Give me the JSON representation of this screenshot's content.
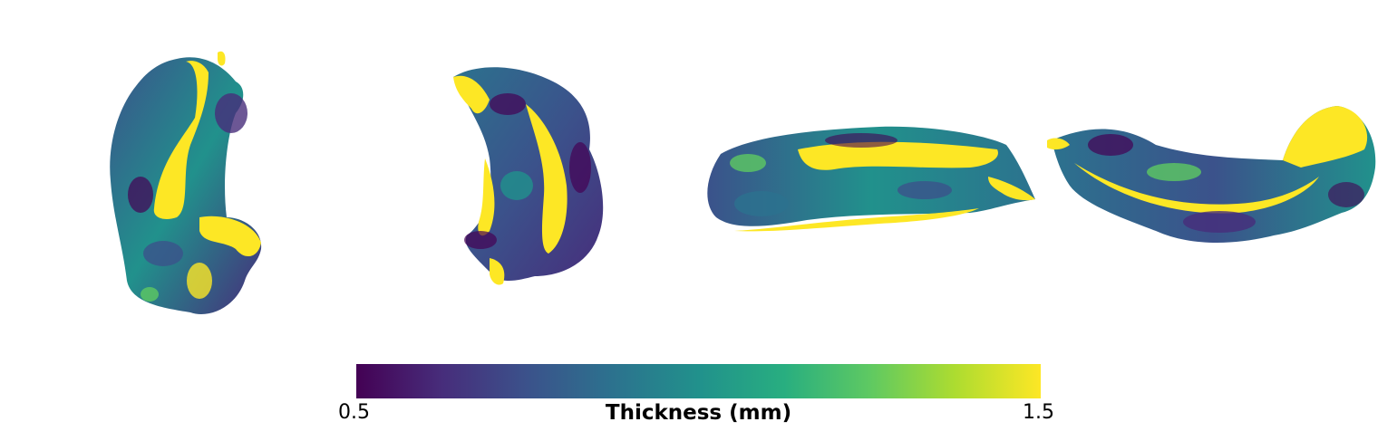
{
  "colorbar": {
    "label": "Thickness (mm)",
    "min_label": "0.5",
    "max_label": "1.5",
    "colormap": "viridis",
    "stops": [
      "#440154",
      "#472d7b",
      "#3b528b",
      "#2c728e",
      "#21918c",
      "#28ae80",
      "#5ec962",
      "#addc30",
      "#fde725"
    ]
  },
  "views": [
    {
      "name": "medial-view"
    },
    {
      "name": "lateral-view"
    },
    {
      "name": "inferior-view"
    },
    {
      "name": "superior-view"
    }
  ]
}
